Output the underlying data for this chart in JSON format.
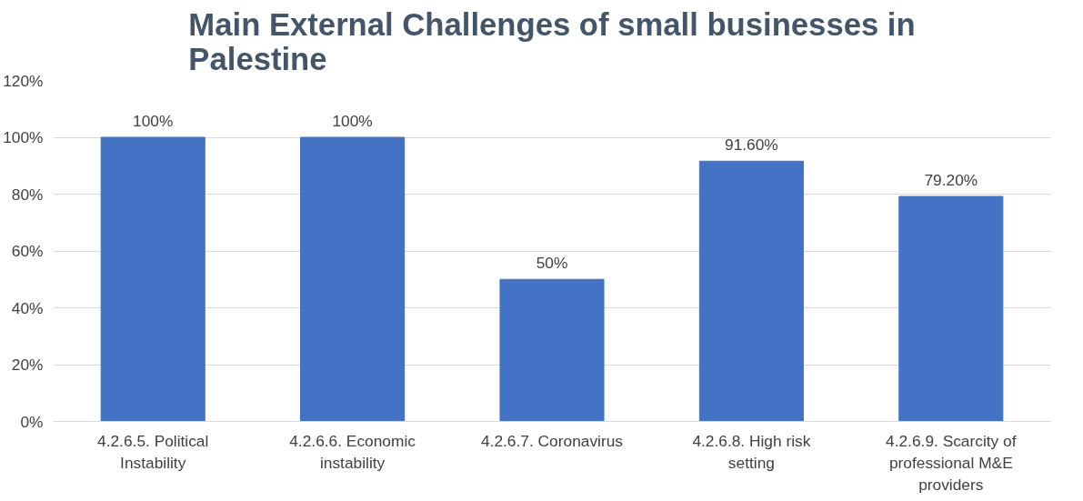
{
  "chart_data": {
    "type": "bar",
    "title": "Main External Challenges of small businesses in Palestine",
    "categories": [
      "4.2.6.5. Political Instability",
      "4.2.6.6. Economic instability",
      "4.2.6.7. Coronavirus",
      "4.2.6.8. High risk setting",
      "4.2.6.9. Scarcity of professional M&E providers"
    ],
    "values": [
      100,
      100,
      50,
      91.6,
      79.2
    ],
    "value_labels": [
      "100%",
      "100%",
      "50%",
      "91.60%",
      "79.20%"
    ],
    "color": "#4472c4",
    "ylim": [
      0,
      120
    ],
    "yticks": [
      {
        "value": 0,
        "label": "0%"
      },
      {
        "value": 20,
        "label": "20%"
      },
      {
        "value": 40,
        "label": "40%"
      },
      {
        "value": 60,
        "label": "60%"
      },
      {
        "value": 80,
        "label": "80%"
      },
      {
        "value": 100,
        "label": "100%"
      },
      {
        "value": 120,
        "label": "120%"
      }
    ],
    "grid": "y"
  }
}
